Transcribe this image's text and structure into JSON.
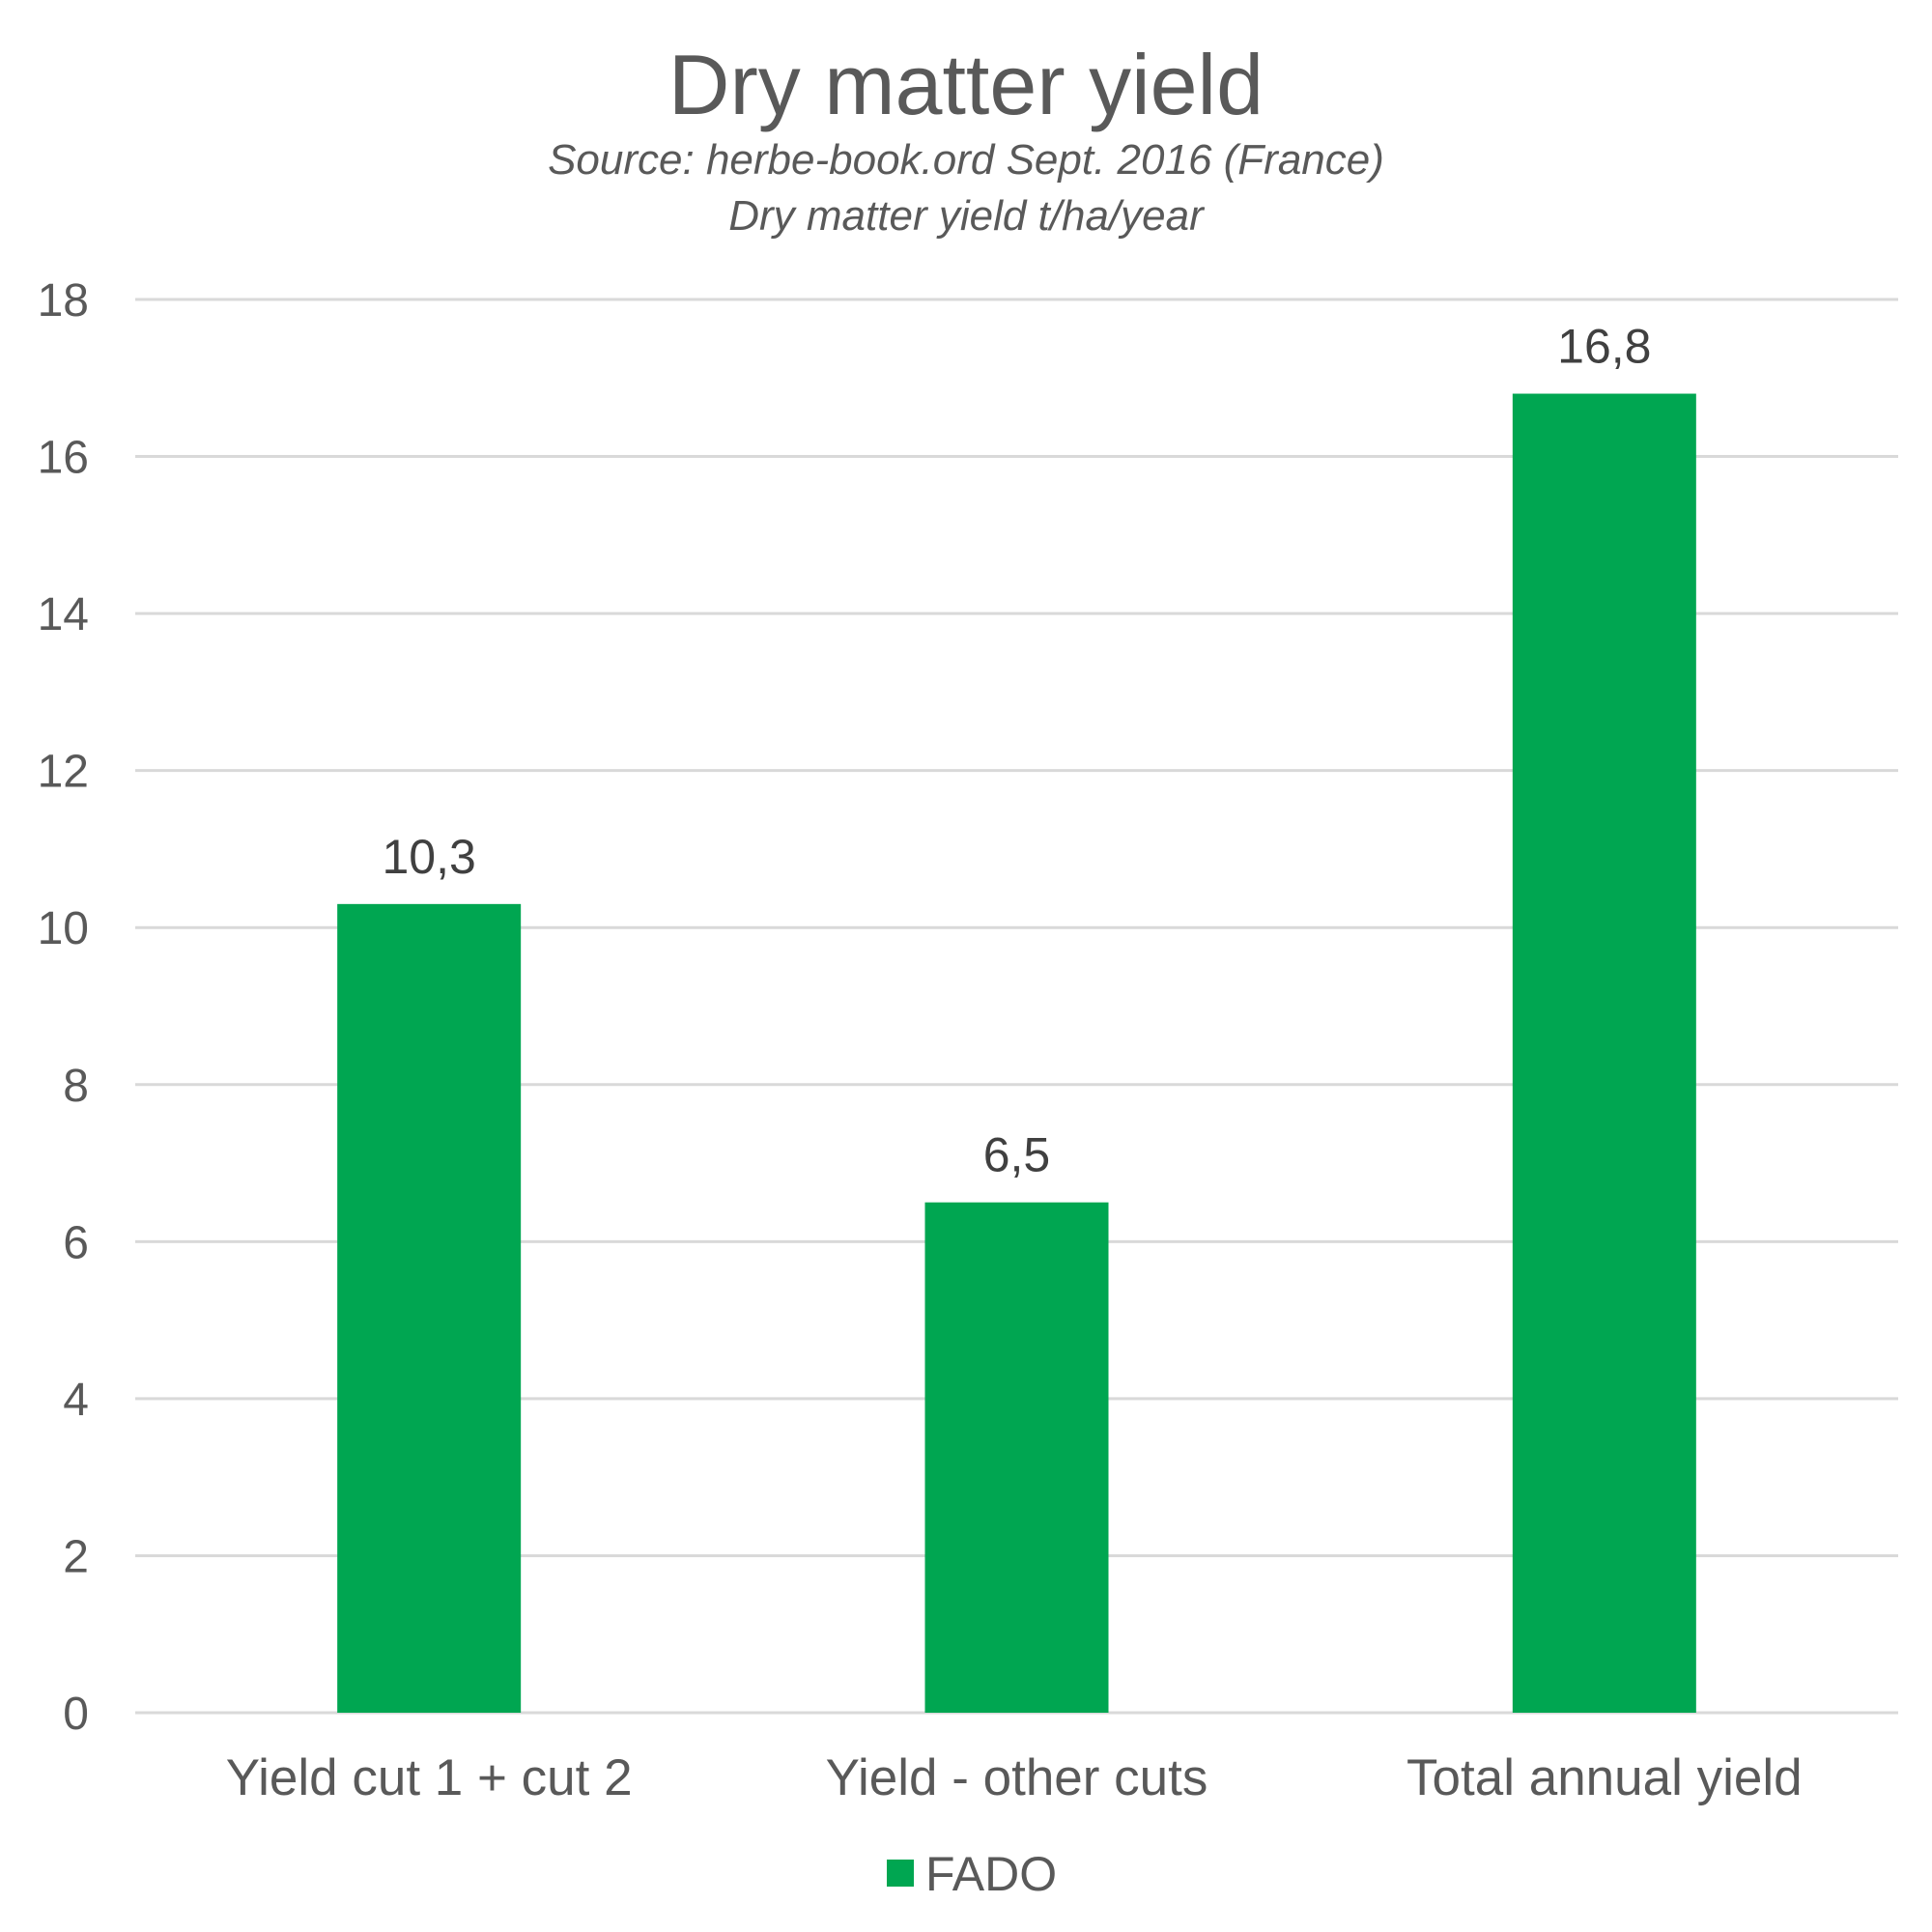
{
  "chart_data": {
    "type": "bar",
    "title": "Dry matter yield",
    "subtitle_lines": [
      "Source: herbe-book.ord Sept. 2016 (France)",
      "Dry matter yield t/ha/year"
    ],
    "categories": [
      "Yield cut 1 + cut 2",
      "Yield - other cuts",
      "Total annual yield"
    ],
    "series": [
      {
        "name": "FADO",
        "values": [
          10.3,
          6.5,
          16.8
        ],
        "labels": [
          "10,3",
          "6,5",
          "16,8"
        ],
        "color": "#00A651"
      }
    ],
    "ylim": [
      0,
      18
    ],
    "yticks": [
      0,
      2,
      4,
      6,
      8,
      10,
      12,
      14,
      16,
      18
    ],
    "grid": true,
    "gridColor": "#D9D9D9",
    "legend": "bottom"
  }
}
